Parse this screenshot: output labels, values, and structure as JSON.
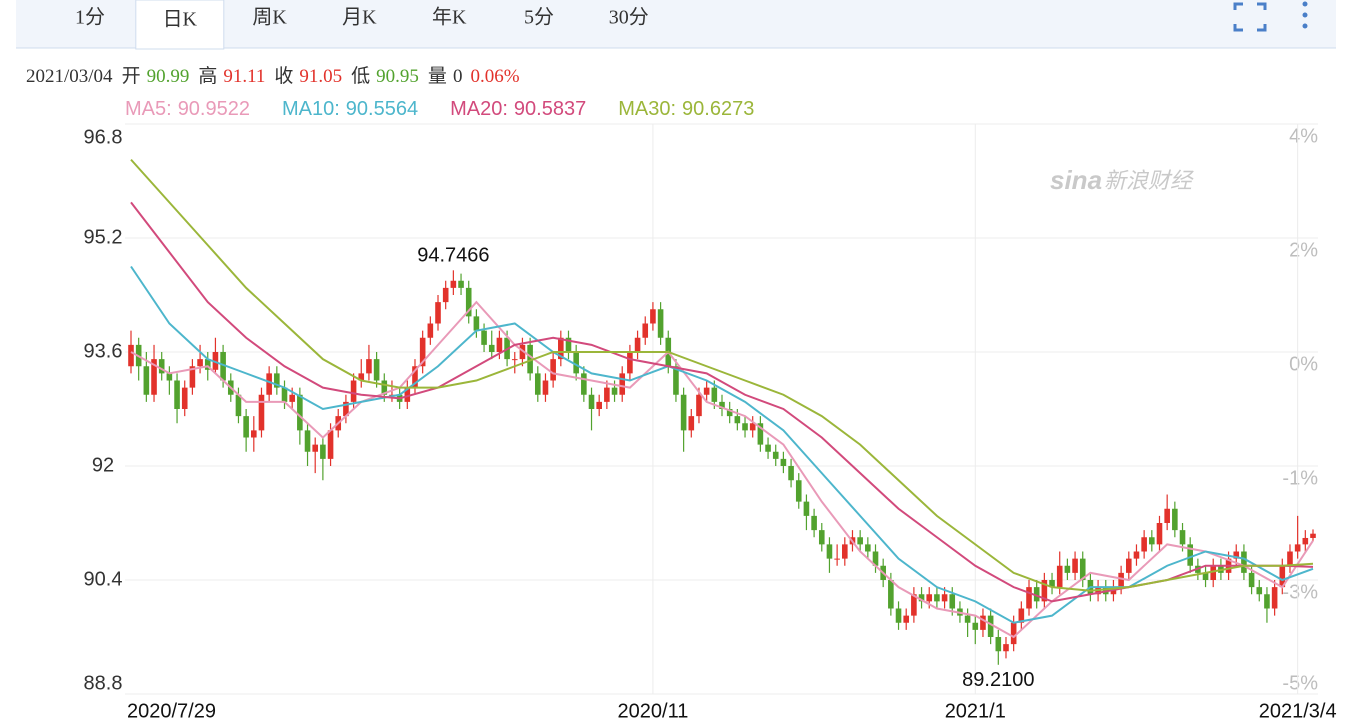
{
  "tabs": {
    "items": [
      "1分",
      "日K",
      "周K",
      "月K",
      "年K",
      "5分",
      "30分"
    ],
    "active": 1
  },
  "header": {
    "date": "2021/03/04",
    "labels": [
      "开",
      "高",
      "收",
      "低",
      "量"
    ],
    "volume": 0,
    "change": "0.06%"
  },
  "chart_data": {
    "type": "candlestick",
    "up_color": "#e2322b",
    "down_color": "#52a22e",
    "grid": true,
    "watermark": [
      "sina",
      "新浪财经"
    ],
    "ylim": [
      88.8,
      96.8
    ],
    "yticks": [
      96.8,
      95.2,
      93.6,
      92,
      90.4,
      88.8
    ],
    "y2ticks": [
      {
        "value": 4,
        "label": "4%"
      },
      {
        "value": 2,
        "label": "2%"
      },
      {
        "value": 0,
        "label": "0%"
      },
      {
        "value": -1,
        "label": "-1%"
      },
      {
        "value": -3,
        "label": "-3%"
      },
      {
        "value": -5,
        "label": "-5%"
      }
    ],
    "low_label": "89.2100",
    "categories": [
      "2020/7/29",
      null,
      null,
      null,
      null,
      null,
      null,
      null,
      null,
      null,
      null,
      null,
      null,
      null,
      null,
      null,
      null,
      null,
      null,
      null,
      null,
      null,
      null,
      null,
      null,
      null,
      null,
      null,
      null,
      null,
      null,
      null,
      null,
      null,
      null,
      null,
      null,
      null,
      null,
      null,
      null,
      null,
      null,
      null,
      null,
      null,
      null,
      null,
      null,
      null,
      null,
      null,
      null,
      null,
      null,
      null,
      null,
      null,
      null,
      null,
      null,
      null,
      null,
      null,
      null,
      null,
      null,
      null,
      "2020/11",
      null,
      null,
      null,
      null,
      null,
      null,
      null,
      null,
      null,
      null,
      null,
      null,
      null,
      null,
      null,
      null,
      null,
      null,
      null,
      null,
      null,
      null,
      null,
      null,
      null,
      null,
      null,
      null,
      null,
      null,
      null,
      null,
      null,
      null,
      null,
      null,
      null,
      null,
      null,
      null,
      null,
      "2021/1",
      null,
      null,
      null,
      null,
      null,
      null,
      null,
      null,
      null,
      null,
      null,
      null,
      null,
      null,
      null,
      null,
      null,
      null,
      null,
      null,
      null,
      null,
      null,
      null,
      null,
      null,
      null,
      null,
      null,
      null,
      null,
      null,
      null,
      null,
      null,
      null,
      null,
      null,
      null,
      null,
      null,
      "2021/3/4"
    ],
    "candles": [
      [
        93.4,
        93.9,
        93.3,
        93.7
      ],
      [
        93.7,
        93.8,
        93.2,
        93.4
      ],
      [
        93.4,
        93.6,
        92.9,
        93.0
      ],
      [
        93.0,
        93.7,
        92.9,
        93.5
      ],
      [
        93.5,
        93.6,
        93.2,
        93.3
      ],
      [
        93.3,
        93.4,
        93.0,
        93.2
      ],
      [
        93.2,
        93.3,
        92.6,
        92.8
      ],
      [
        92.8,
        93.2,
        92.7,
        93.1
      ],
      [
        93.1,
        93.5,
        93.0,
        93.4
      ],
      [
        93.4,
        93.7,
        93.3,
        93.5
      ],
      [
        93.5,
        93.6,
        93.2,
        93.35
      ],
      [
        93.35,
        93.8,
        93.3,
        93.6
      ],
      [
        93.6,
        93.7,
        93.1,
        93.2
      ],
      [
        93.2,
        93.3,
        92.9,
        93.0
      ],
      [
        93.0,
        93.1,
        92.6,
        92.7
      ],
      [
        92.7,
        92.8,
        92.2,
        92.4
      ],
      [
        92.4,
        92.7,
        92.2,
        92.5
      ],
      [
        92.5,
        93.1,
        92.4,
        93.0
      ],
      [
        93.0,
        93.4,
        92.9,
        93.3
      ],
      [
        93.3,
        93.4,
        93.0,
        93.1
      ],
      [
        93.1,
        93.2,
        92.8,
        92.9
      ],
      [
        92.9,
        93.1,
        92.8,
        93.0
      ],
      [
        93.0,
        93.1,
        92.3,
        92.5
      ],
      [
        92.5,
        92.6,
        92.0,
        92.2
      ],
      [
        92.2,
        92.4,
        91.9,
        92.3
      ],
      [
        92.3,
        92.4,
        91.8,
        92.1
      ],
      [
        92.1,
        92.6,
        92.0,
        92.5
      ],
      [
        92.5,
        92.8,
        92.4,
        92.7
      ],
      [
        92.7,
        93.0,
        92.6,
        92.9
      ],
      [
        92.9,
        93.3,
        92.8,
        93.2
      ],
      [
        93.2,
        93.5,
        93.1,
        93.3
      ],
      [
        93.3,
        93.7,
        93.2,
        93.5
      ],
      [
        93.5,
        93.6,
        93.1,
        93.2
      ],
      [
        93.2,
        93.3,
        92.9,
        93.0
      ],
      [
        93.0,
        93.2,
        92.9,
        93.0
      ],
      [
        93.0,
        93.1,
        92.8,
        92.9
      ],
      [
        92.9,
        93.2,
        92.8,
        93.1
      ],
      [
        93.1,
        93.5,
        93.0,
        93.4
      ],
      [
        93.4,
        93.9,
        93.3,
        93.8
      ],
      [
        93.8,
        94.1,
        93.7,
        94.0
      ],
      [
        94.0,
        94.4,
        93.9,
        94.3
      ],
      [
        94.3,
        94.6,
        94.2,
        94.5
      ],
      [
        94.5,
        94.7466,
        94.4,
        94.6
      ],
      [
        94.6,
        94.7,
        94.4,
        94.5
      ],
      [
        94.5,
        94.6,
        94.0,
        94.1
      ],
      [
        94.1,
        94.2,
        93.8,
        93.9
      ],
      [
        93.9,
        94.0,
        93.6,
        93.7
      ],
      [
        93.7,
        93.9,
        93.5,
        93.6
      ],
      [
        93.6,
        93.9,
        93.5,
        93.8
      ],
      [
        93.8,
        93.9,
        93.4,
        93.5
      ],
      [
        93.5,
        93.6,
        93.3,
        93.5
      ],
      [
        93.5,
        93.8,
        93.4,
        93.7
      ],
      [
        93.7,
        93.8,
        93.2,
        93.3
      ],
      [
        93.3,
        93.4,
        92.9,
        93.0
      ],
      [
        93.0,
        93.3,
        92.9,
        93.2
      ],
      [
        93.2,
        93.6,
        93.1,
        93.5
      ],
      [
        93.5,
        93.9,
        93.4,
        93.8
      ],
      [
        93.8,
        93.9,
        93.5,
        93.6
      ],
      [
        93.6,
        93.7,
        93.2,
        93.3
      ],
      [
        93.3,
        93.4,
        92.9,
        93.0
      ],
      [
        93.0,
        93.1,
        92.5,
        92.8
      ],
      [
        92.8,
        93.0,
        92.7,
        92.9
      ],
      [
        92.9,
        93.2,
        92.8,
        93.1
      ],
      [
        93.1,
        93.2,
        92.9,
        93.0
      ],
      [
        93.0,
        93.4,
        92.9,
        93.3
      ],
      [
        93.3,
        93.7,
        93.2,
        93.6
      ],
      [
        93.6,
        93.9,
        93.5,
        93.8
      ],
      [
        93.8,
        94.1,
        93.7,
        94.0
      ],
      [
        94.0,
        94.3,
        93.9,
        94.2
      ],
      [
        94.2,
        94.3,
        93.7,
        93.8
      ],
      [
        93.8,
        93.9,
        93.3,
        93.4
      ],
      [
        93.4,
        93.5,
        92.9,
        93.0
      ],
      [
        93.0,
        93.1,
        92.2,
        92.5
      ],
      [
        92.5,
        92.8,
        92.4,
        92.7
      ],
      [
        92.7,
        93.1,
        92.6,
        93.0
      ],
      [
        93.0,
        93.2,
        92.9,
        93.1
      ],
      [
        93.1,
        93.2,
        92.8,
        92.9
      ],
      [
        92.9,
        93.0,
        92.7,
        92.8
      ],
      [
        92.8,
        92.9,
        92.6,
        92.7
      ],
      [
        92.7,
        92.8,
        92.5,
        92.6
      ],
      [
        92.6,
        92.7,
        92.4,
        92.5
      ],
      [
        92.5,
        92.7,
        92.4,
        92.6
      ],
      [
        92.6,
        92.7,
        92.2,
        92.3
      ],
      [
        92.3,
        92.4,
        92.1,
        92.2
      ],
      [
        92.2,
        92.3,
        92.0,
        92.1
      ],
      [
        92.1,
        92.2,
        91.9,
        92.0
      ],
      [
        92.0,
        92.1,
        91.7,
        91.8
      ],
      [
        91.8,
        91.9,
        91.4,
        91.5
      ],
      [
        91.5,
        91.6,
        91.1,
        91.3
      ],
      [
        91.3,
        91.4,
        91.0,
        91.1
      ],
      [
        91.1,
        91.2,
        90.8,
        90.9
      ],
      [
        90.9,
        91.0,
        90.5,
        90.7
      ],
      [
        90.7,
        90.9,
        90.6,
        90.7
      ],
      [
        90.7,
        91.0,
        90.6,
        90.9
      ],
      [
        90.9,
        91.1,
        90.8,
        91.0
      ],
      [
        91.0,
        91.1,
        90.8,
        90.9
      ],
      [
        90.9,
        91.0,
        90.7,
        90.8
      ],
      [
        90.8,
        90.9,
        90.5,
        90.6
      ],
      [
        90.6,
        90.7,
        90.3,
        90.4
      ],
      [
        90.4,
        90.5,
        89.9,
        90.0
      ],
      [
        90.0,
        90.1,
        89.7,
        89.8
      ],
      [
        89.8,
        90.0,
        89.7,
        89.9
      ],
      [
        89.9,
        90.3,
        89.8,
        90.2
      ],
      [
        90.2,
        90.3,
        90.0,
        90.1
      ],
      [
        90.1,
        90.3,
        90.0,
        90.2
      ],
      [
        90.2,
        90.3,
        90.0,
        90.1
      ],
      [
        90.1,
        90.3,
        90.0,
        90.2
      ],
      [
        90.2,
        90.3,
        89.9,
        90.0
      ],
      [
        90.0,
        90.1,
        89.8,
        89.9
      ],
      [
        89.9,
        90.0,
        89.6,
        89.8
      ],
      [
        89.8,
        89.9,
        89.5,
        89.7
      ],
      [
        89.7,
        90.0,
        89.6,
        89.9
      ],
      [
        89.9,
        90.0,
        89.5,
        89.6
      ],
      [
        89.6,
        89.7,
        89.21,
        89.4
      ],
      [
        89.4,
        89.6,
        89.3,
        89.5
      ],
      [
        89.5,
        89.9,
        89.4,
        89.8
      ],
      [
        89.8,
        90.1,
        89.7,
        90.0
      ],
      [
        90.0,
        90.4,
        89.9,
        90.3
      ],
      [
        90.3,
        90.4,
        90.0,
        90.1
      ],
      [
        90.1,
        90.5,
        90.0,
        90.4
      ],
      [
        90.4,
        90.5,
        90.2,
        90.3
      ],
      [
        90.3,
        90.8,
        90.2,
        90.6
      ],
      [
        90.6,
        90.7,
        90.4,
        90.5
      ],
      [
        90.5,
        90.8,
        90.4,
        90.7
      ],
      [
        90.7,
        90.8,
        90.3,
        90.4
      ],
      [
        90.4,
        90.5,
        90.1,
        90.2
      ],
      [
        90.2,
        90.4,
        90.1,
        90.3
      ],
      [
        90.3,
        90.4,
        90.1,
        90.2
      ],
      [
        90.2,
        90.4,
        90.1,
        90.3
      ],
      [
        90.3,
        90.6,
        90.2,
        90.5
      ],
      [
        90.5,
        90.8,
        90.4,
        90.7
      ],
      [
        90.7,
        90.9,
        90.6,
        90.8
      ],
      [
        90.8,
        91.1,
        90.7,
        91.0
      ],
      [
        91.0,
        91.1,
        90.8,
        90.9
      ],
      [
        90.9,
        91.3,
        90.8,
        91.2
      ],
      [
        91.2,
        91.6,
        91.1,
        91.4
      ],
      [
        91.4,
        91.5,
        91.0,
        91.1
      ],
      [
        91.1,
        91.2,
        90.8,
        90.9
      ],
      [
        90.9,
        91.0,
        90.5,
        90.6
      ],
      [
        90.6,
        90.7,
        90.4,
        90.5
      ],
      [
        90.5,
        90.6,
        90.3,
        90.4
      ],
      [
        90.4,
        90.7,
        90.3,
        90.6
      ],
      [
        90.6,
        90.7,
        90.4,
        90.5
      ],
      [
        90.5,
        90.8,
        90.4,
        90.7
      ],
      [
        90.7,
        90.9,
        90.6,
        90.8
      ],
      [
        90.8,
        90.9,
        90.4,
        90.5
      ],
      [
        90.5,
        90.6,
        90.2,
        90.3
      ],
      [
        90.3,
        90.4,
        90.1,
        90.2
      ],
      [
        90.2,
        90.3,
        89.8,
        90.0
      ],
      [
        90.0,
        90.4,
        89.9,
        90.3
      ],
      [
        90.3,
        90.7,
        90.2,
        90.6
      ],
      [
        90.6,
        90.9,
        90.5,
        90.8
      ],
      [
        90.8,
        91.3,
        90.7,
        90.9
      ],
      [
        90.9,
        91.1,
        90.8,
        90.99
      ],
      [
        90.99,
        91.11,
        90.95,
        91.05
      ]
    ],
    "series": [
      {
        "name": "MA5:",
        "color": "#e99ab8",
        "x": [
          0,
          5,
          10,
          15,
          20,
          25,
          30,
          35,
          40,
          45,
          50,
          55,
          60,
          65,
          70,
          75,
          80,
          85,
          90,
          95,
          100,
          105,
          110,
          115,
          120,
          125,
          130,
          135,
          140,
          145,
          150,
          154
        ],
        "values": [
          93.6,
          93.3,
          93.4,
          92.9,
          92.9,
          92.4,
          92.9,
          93.1,
          93.7,
          94.3,
          93.7,
          93.3,
          93.2,
          93.1,
          93.6,
          92.9,
          92.7,
          92.3,
          91.5,
          90.8,
          90.3,
          90.0,
          89.9,
          89.6,
          90.1,
          90.5,
          90.4,
          90.9,
          90.8,
          90.6,
          90.3,
          90.9522
        ]
      },
      {
        "name": "MA10:",
        "color": "#4db6cc",
        "x": [
          0,
          5,
          10,
          15,
          20,
          25,
          30,
          35,
          40,
          45,
          50,
          55,
          60,
          65,
          70,
          75,
          80,
          85,
          90,
          95,
          100,
          105,
          110,
          115,
          120,
          125,
          130,
          135,
          140,
          145,
          150,
          154
        ],
        "values": [
          94.8,
          94.0,
          93.5,
          93.3,
          93.1,
          92.8,
          92.9,
          93.0,
          93.4,
          93.9,
          94.0,
          93.6,
          93.3,
          93.2,
          93.4,
          93.2,
          92.9,
          92.5,
          91.9,
          91.3,
          90.7,
          90.3,
          90.1,
          89.8,
          89.9,
          90.3,
          90.3,
          90.6,
          90.8,
          90.7,
          90.4,
          90.5564
        ]
      },
      {
        "name": "MA20:",
        "color": "#d24a7c",
        "x": [
          0,
          5,
          10,
          15,
          20,
          25,
          30,
          35,
          40,
          45,
          50,
          55,
          60,
          65,
          70,
          75,
          80,
          85,
          90,
          95,
          100,
          105,
          110,
          115,
          120,
          125,
          130,
          135,
          140,
          145,
          150,
          154
        ],
        "values": [
          95.7,
          95.0,
          94.3,
          93.8,
          93.4,
          93.1,
          93.0,
          92.95,
          93.1,
          93.4,
          93.7,
          93.8,
          93.7,
          93.5,
          93.4,
          93.3,
          93.0,
          92.8,
          92.4,
          91.9,
          91.4,
          91.0,
          90.6,
          90.3,
          90.1,
          90.2,
          90.3,
          90.4,
          90.6,
          90.6,
          90.6,
          90.5837
        ]
      },
      {
        "name": "MA30:",
        "color": "#9bb63a",
        "x": [
          0,
          5,
          10,
          15,
          20,
          25,
          30,
          35,
          40,
          45,
          50,
          55,
          60,
          65,
          70,
          75,
          80,
          85,
          90,
          95,
          100,
          105,
          110,
          115,
          120,
          125,
          130,
          135,
          140,
          145,
          150,
          154
        ],
        "values": [
          96.3,
          95.7,
          95.1,
          94.5,
          94.0,
          93.5,
          93.2,
          93.1,
          93.1,
          93.2,
          93.4,
          93.6,
          93.6,
          93.6,
          93.6,
          93.4,
          93.2,
          93.0,
          92.7,
          92.3,
          91.8,
          91.3,
          90.9,
          90.5,
          90.3,
          90.25,
          90.3,
          90.4,
          90.5,
          90.6,
          90.6,
          90.6273
        ]
      }
    ]
  }
}
